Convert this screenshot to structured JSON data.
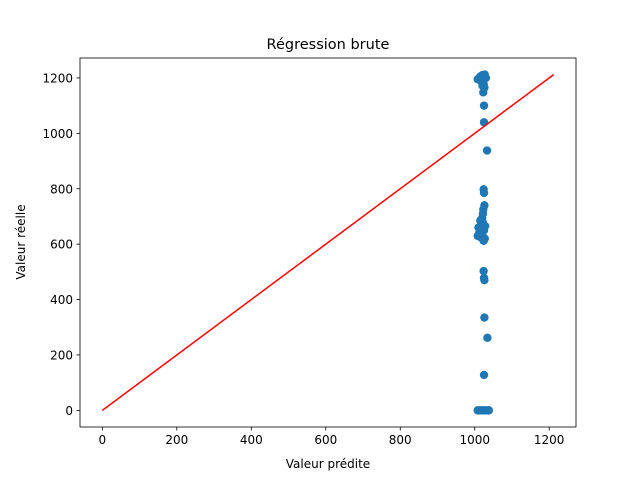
{
  "chart_data": {
    "type": "scatter",
    "title": "Régression brute",
    "xlabel": "Valeur prédite",
    "ylabel": "Valeur réelle",
    "xlim": [
      -60,
      1272
    ],
    "ylim": [
      -60,
      1272
    ],
    "xticks": [
      0,
      200,
      400,
      600,
      800,
      1000,
      1200
    ],
    "yticks": [
      0,
      200,
      400,
      600,
      800,
      1000,
      1200
    ],
    "grid": false,
    "colors": {
      "points": "#1f77b4",
      "line": "#ff0000",
      "axes": "#000000"
    },
    "series": [
      {
        "kind": "scatter",
        "points": [
          [
            1008,
            1195
          ],
          [
            1012,
            1200
          ],
          [
            1015,
            1205
          ],
          [
            1018,
            1198
          ],
          [
            1020,
            1210
          ],
          [
            1022,
            1190
          ],
          [
            1025,
            1208
          ],
          [
            1027,
            1212
          ],
          [
            1030,
            1200
          ],
          [
            1019,
            1185
          ],
          [
            1024,
            1178
          ],
          [
            1021,
            1172
          ],
          [
            1026,
            1165
          ],
          [
            1023,
            1148
          ],
          [
            1025,
            1100
          ],
          [
            1025,
            1040
          ],
          [
            1033,
            938
          ],
          [
            1024,
            798
          ],
          [
            1025,
            785
          ],
          [
            1026,
            740
          ],
          [
            1023,
            725
          ],
          [
            1022,
            710
          ],
          [
            1020,
            695
          ],
          [
            1015,
            685
          ],
          [
            1021,
            680
          ],
          [
            1024,
            670
          ],
          [
            1028,
            665
          ],
          [
            1010,
            660
          ],
          [
            1018,
            655
          ],
          [
            1025,
            650
          ],
          [
            1012,
            640
          ],
          [
            1020,
            635
          ],
          [
            1008,
            630
          ],
          [
            1016,
            625
          ],
          [
            1027,
            620
          ],
          [
            1024,
            612
          ],
          [
            1024,
            503
          ],
          [
            1025,
            478
          ],
          [
            1026,
            470
          ],
          [
            1026,
            335
          ],
          [
            1034,
            262
          ],
          [
            1025,
            128
          ],
          [
            1008,
            0
          ],
          [
            1014,
            0
          ],
          [
            1020,
            0
          ],
          [
            1025,
            0
          ],
          [
            1030,
            0
          ],
          [
            1036,
            0
          ],
          [
            1038,
            0
          ]
        ]
      },
      {
        "kind": "line",
        "points": [
          [
            0,
            0
          ],
          [
            1212,
            1212
          ]
        ]
      }
    ]
  }
}
